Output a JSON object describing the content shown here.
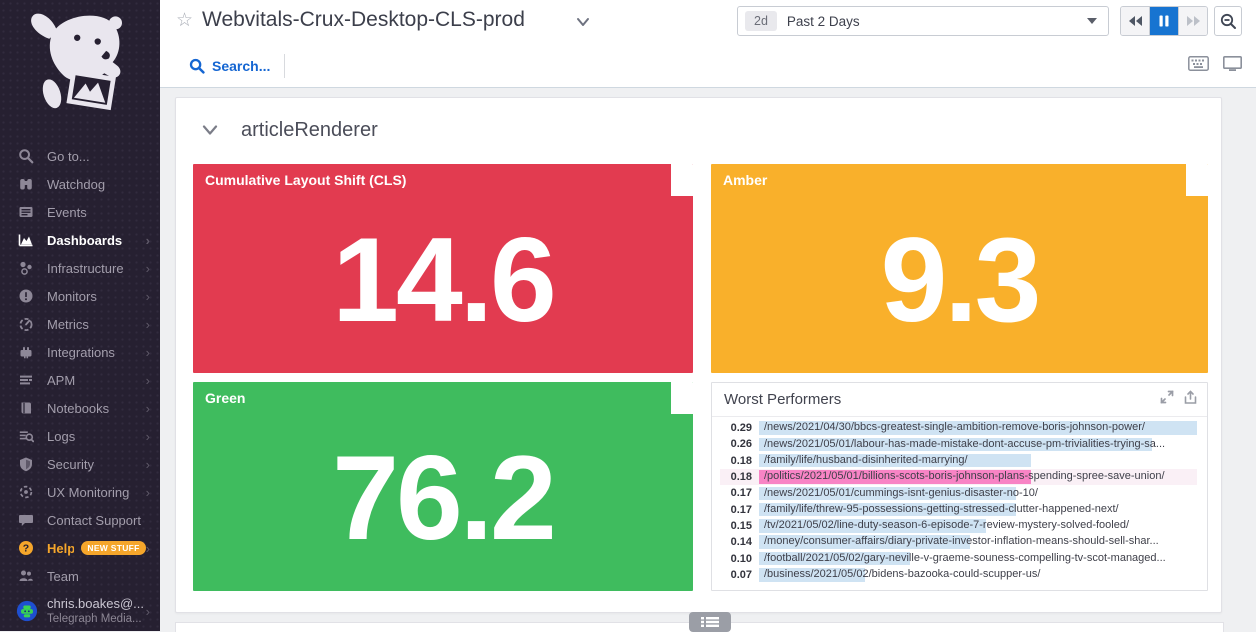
{
  "sidebar": {
    "items": [
      {
        "label": "Go to...",
        "icon": "search-icon"
      },
      {
        "label": "Watchdog",
        "icon": "binoculars-icon"
      },
      {
        "label": "Events",
        "icon": "events-icon"
      },
      {
        "label": "Dashboards",
        "icon": "dashboards-icon",
        "active": true,
        "has_arrow": true
      },
      {
        "label": "Infrastructure",
        "icon": "infrastructure-icon",
        "has_arrow": true
      },
      {
        "label": "Monitors",
        "icon": "monitors-icon",
        "has_arrow": true
      },
      {
        "label": "Metrics",
        "icon": "metrics-icon",
        "has_arrow": true
      },
      {
        "label": "Integrations",
        "icon": "integrations-icon",
        "has_arrow": true
      },
      {
        "label": "APM",
        "icon": "apm-icon",
        "has_arrow": true
      },
      {
        "label": "Notebooks",
        "icon": "notebooks-icon",
        "has_arrow": true
      },
      {
        "label": "Logs",
        "icon": "logs-icon",
        "has_arrow": true
      },
      {
        "label": "Security",
        "icon": "security-icon",
        "has_arrow": true
      },
      {
        "label": "UX Monitoring",
        "icon": "ux-monitoring-icon",
        "has_arrow": true
      },
      {
        "label": "Contact Support",
        "icon": "chat-bubble-icon"
      },
      {
        "label": "Help",
        "icon": "help-icon",
        "badge": "NEW STUFF",
        "has_arrow": true
      },
      {
        "label": "Team",
        "icon": "team-icon"
      }
    ],
    "user": {
      "name": "chris.boakes@...",
      "org": "Telegraph Media..."
    }
  },
  "header": {
    "title": "Webvitals-Crux-Desktop-CLS-prod",
    "star": "☆",
    "search_label": "Search...",
    "time_range": {
      "badge": "2d",
      "label": "Past 2 Days"
    }
  },
  "group": {
    "title": "articleRenderer"
  },
  "widgets": {
    "cls": {
      "title": "Cumulative Layout Shift (CLS)",
      "value": "14.6",
      "color": "#e23b50"
    },
    "amber": {
      "title": "Amber",
      "value": "9.3",
      "color": "#f9b02b"
    },
    "green": {
      "title": "Green",
      "value": "76.2",
      "color": "#3fbc5e"
    }
  },
  "worst_performers": {
    "title": "Worst Performers",
    "bar_color": "#cfe3f3",
    "highlight_color": "#f884c5",
    "rows": [
      {
        "value": 0.29,
        "url": "/news/2021/04/30/bbcs-greatest-single-ambition-remove-boris-johnson-power/"
      },
      {
        "value": 0.26,
        "url": "/news/2021/05/01/labour-has-made-mistake-dont-accuse-pm-trivialities-trying-sa..."
      },
      {
        "value": 0.18,
        "url": "/family/life/husband-disinherited-marrying/"
      },
      {
        "value": 0.18,
        "url": "/politics/2021/05/01/billions-scots-boris-johnson-plans-spending-spree-save-union/",
        "highlight": true
      },
      {
        "value": 0.17,
        "url": "/news/2021/05/01/cummings-isnt-genius-disaster-no-10/"
      },
      {
        "value": 0.17,
        "url": "/family/life/threw-95-possessions-getting-stressed-clutter-happened-next/"
      },
      {
        "value": 0.15,
        "url": "/tv/2021/05/02/line-duty-season-6-episode-7-review-mystery-solved-fooled/"
      },
      {
        "value": 0.14,
        "url": "/money/consumer-affairs/diary-private-investor-inflation-means-should-sell-shar..."
      },
      {
        "value": 0.1,
        "url": "/football/2021/05/02/gary-neville-v-graeme-souness-compelling-tv-scot-managed..."
      },
      {
        "value": 0.07,
        "url": "/business/2021/05/02/bidens-bazooka-could-scupper-us/"
      }
    ]
  }
}
